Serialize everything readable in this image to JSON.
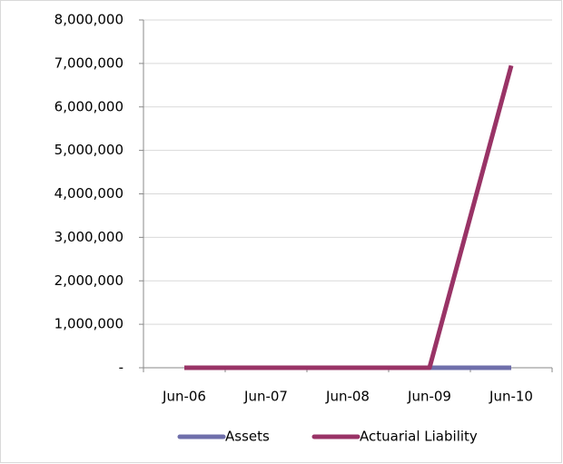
{
  "chart_data": {
    "type": "line",
    "categories": [
      "Jun-06",
      "Jun-07",
      "Jun-08",
      "Jun-09",
      "Jun-10"
    ],
    "series": [
      {
        "name": "Assets",
        "color": "#6f6fab",
        "values": [
          0,
          0,
          0,
          0,
          0
        ]
      },
      {
        "name": "Actuarial Liability",
        "color": "#993366",
        "values": [
          0,
          0,
          0,
          0,
          6950000
        ]
      }
    ],
    "ylim": [
      0,
      8000000
    ],
    "yticks": [
      {
        "value": 0,
        "label": "-"
      },
      {
        "value": 1000000,
        "label": "1,000,000"
      },
      {
        "value": 2000000,
        "label": "2,000,000"
      },
      {
        "value": 3000000,
        "label": "3,000,000"
      },
      {
        "value": 4000000,
        "label": "4,000,000"
      },
      {
        "value": 5000000,
        "label": "5,000,000"
      },
      {
        "value": 6000000,
        "label": "6,000,000"
      },
      {
        "value": 7000000,
        "label": "7,000,000"
      },
      {
        "value": 8000000,
        "label": "8,000,000"
      }
    ],
    "grid": true,
    "legend": "bottom"
  }
}
